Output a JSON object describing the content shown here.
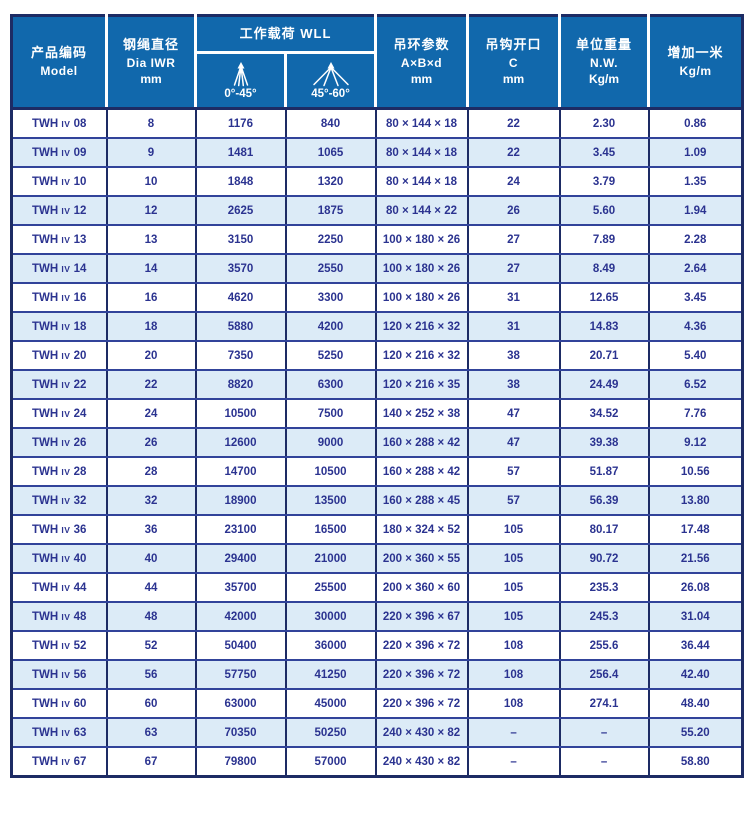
{
  "colors": {
    "page_bg": "#ffffff",
    "header_bg": "#1168ac",
    "header_text": "#ffffff",
    "grid_vertical": "#1d2b64",
    "grid_horizontal": "#31439a",
    "row_bg": "#ffffff",
    "row_alt_bg": "#dcebf7",
    "body_text": "#2b3390"
  },
  "table": {
    "column_ids": [
      "model",
      "dia",
      "wll_0_45",
      "wll_45_60",
      "ring",
      "hook",
      "weight",
      "extra"
    ],
    "header": {
      "model": {
        "zh": "产品编码",
        "en": "Model"
      },
      "dia": {
        "zh": "钢绳直径",
        "en": "Dia IWR",
        "unit": "mm"
      },
      "wll": {
        "zh": "工作载荷 WLL",
        "sub": [
          {
            "label": "0°-45°",
            "icon": "sling-angle-narrow-icon"
          },
          {
            "label": "45°-60°",
            "icon": "sling-angle-wide-icon"
          }
        ]
      },
      "ring": {
        "zh": "吊环参数",
        "en": "A×B×d",
        "unit": "mm"
      },
      "hook": {
        "zh": "吊钩开口",
        "en": "C",
        "unit": "mm"
      },
      "weight": {
        "zh": "单位重量",
        "en": "N.W.",
        "unit": "Kg/m"
      },
      "extra": {
        "zh": "增加一米",
        "en": "Kg/m"
      }
    },
    "rows": [
      [
        "TWH IV 08",
        "8",
        "1176",
        "840",
        "80 × 144 × 18",
        "22",
        "2.30",
        "0.86"
      ],
      [
        "TWH IV 09",
        "9",
        "1481",
        "1065",
        "80 × 144 × 18",
        "22",
        "3.45",
        "1.09"
      ],
      [
        "TWH IV 10",
        "10",
        "1848",
        "1320",
        "80 × 144 × 18",
        "24",
        "3.79",
        "1.35"
      ],
      [
        "TWH IV 12",
        "12",
        "2625",
        "1875",
        "80 × 144 × 22",
        "26",
        "5.60",
        "1.94"
      ],
      [
        "TWH IV 13",
        "13",
        "3150",
        "2250",
        "100 × 180 × 26",
        "27",
        "7.89",
        "2.28"
      ],
      [
        "TWH IV 14",
        "14",
        "3570",
        "2550",
        "100 × 180 × 26",
        "27",
        "8.49",
        "2.64"
      ],
      [
        "TWH IV 16",
        "16",
        "4620",
        "3300",
        "100 × 180 × 26",
        "31",
        "12.65",
        "3.45"
      ],
      [
        "TWH IV 18",
        "18",
        "5880",
        "4200",
        "120 × 216 × 32",
        "31",
        "14.83",
        "4.36"
      ],
      [
        "TWH IV 20",
        "20",
        "7350",
        "5250",
        "120 × 216 × 32",
        "38",
        "20.71",
        "5.40"
      ],
      [
        "TWH IV 22",
        "22",
        "8820",
        "6300",
        "120 × 216 × 35",
        "38",
        "24.49",
        "6.52"
      ],
      [
        "TWH IV 24",
        "24",
        "10500",
        "7500",
        "140 × 252 × 38",
        "47",
        "34.52",
        "7.76"
      ],
      [
        "TWH IV 26",
        "26",
        "12600",
        "9000",
        "160 × 288 × 42",
        "47",
        "39.38",
        "9.12"
      ],
      [
        "TWH IV 28",
        "28",
        "14700",
        "10500",
        "160 × 288 × 42",
        "57",
        "51.87",
        "10.56"
      ],
      [
        "TWH IV 32",
        "32",
        "18900",
        "13500",
        "160 × 288 × 45",
        "57",
        "56.39",
        "13.80"
      ],
      [
        "TWH IV 36",
        "36",
        "23100",
        "16500",
        "180 × 324 × 52",
        "105",
        "80.17",
        "17.48"
      ],
      [
        "TWH IV 40",
        "40",
        "29400",
        "21000",
        "200 × 360 × 55",
        "105",
        "90.72",
        "21.56"
      ],
      [
        "TWH IV 44",
        "44",
        "35700",
        "25500",
        "200 × 360 × 60",
        "105",
        "235.3",
        "26.08"
      ],
      [
        "TWH IV 48",
        "48",
        "42000",
        "30000",
        "220 × 396 × 67",
        "105",
        "245.3",
        "31.04"
      ],
      [
        "TWH IV 52",
        "52",
        "50400",
        "36000",
        "220 × 396 × 72",
        "108",
        "255.6",
        "36.44"
      ],
      [
        "TWH IV 56",
        "56",
        "57750",
        "41250",
        "220 × 396 × 72",
        "108",
        "256.4",
        "42.40"
      ],
      [
        "TWH IV 60",
        "60",
        "63000",
        "45000",
        "220 × 396 × 72",
        "108",
        "274.1",
        "48.40"
      ],
      [
        "TWH IV 63",
        "63",
        "70350",
        "50250",
        "240 × 430 × 82",
        "–",
        "–",
        "55.20"
      ],
      [
        "TWH IV 67",
        "67",
        "79800",
        "57000",
        "240 × 430 × 82",
        "–",
        "–",
        "58.80"
      ]
    ]
  }
}
